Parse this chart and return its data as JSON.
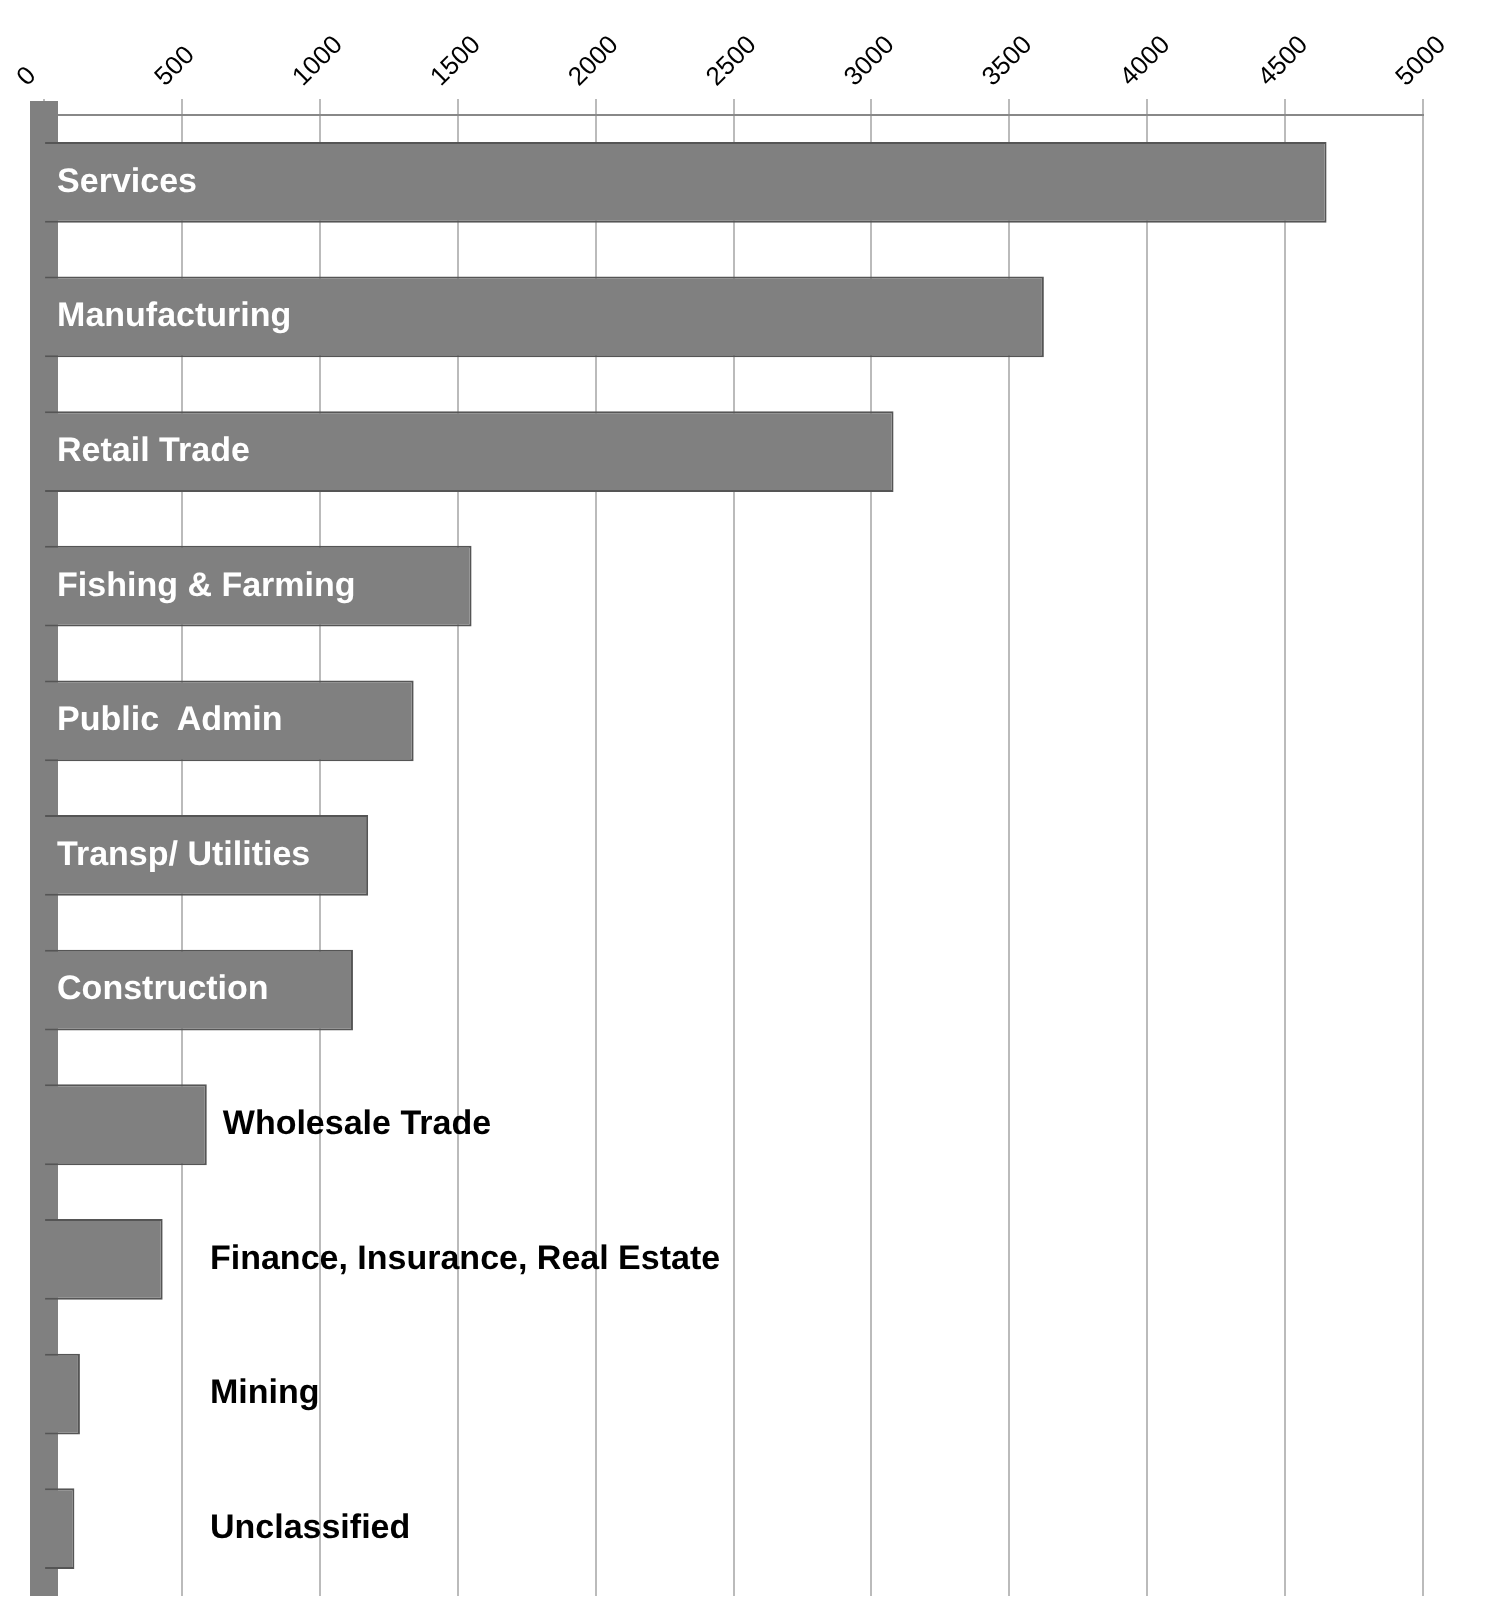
{
  "chart_data": {
    "type": "bar",
    "orientation": "horizontal",
    "categories": [
      "Services",
      "Manufacturing",
      "Retail Trade",
      "Fishing & Farming",
      "Public  Admin",
      "Transp/ Utilities",
      "Construction",
      "Wholesale Trade",
      "Finance, Insurance, Real Estate",
      "Mining",
      "Unclassified"
    ],
    "values": [
      4650,
      3625,
      3080,
      1550,
      1340,
      1175,
      1120,
      590,
      430,
      130,
      110
    ],
    "color": "#808080",
    "xlim": [
      0,
      5000
    ],
    "xticks": [
      0,
      500,
      1000,
      1500,
      2000,
      2500,
      3000,
      3500,
      4000,
      4500,
      5000
    ],
    "grid": "x",
    "tick_labels": "x",
    "legend": false
  }
}
